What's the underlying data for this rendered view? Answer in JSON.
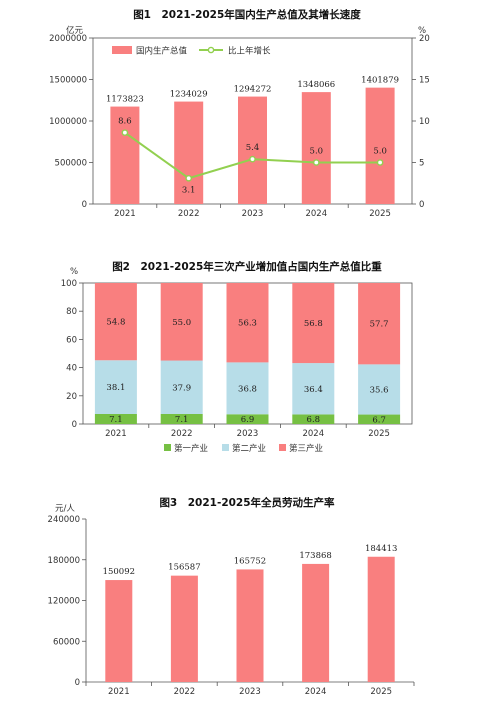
{
  "colors": {
    "bar": "#f97f7f",
    "line": "#92d050",
    "primary": "#76c043",
    "secondary": "#b7dde8",
    "tertiary": "#f97f7f",
    "axis": "#555555"
  },
  "chart_data": [
    {
      "type": "bar",
      "title": "图1　2021-2025年国内生产总值及其增长速度",
      "categories": [
        "2021",
        "2022",
        "2023",
        "2024",
        "2025"
      ],
      "left_unit": "亿元",
      "right_unit": "%",
      "left_ticks": [
        "0",
        "500000",
        "1000000",
        "1500000",
        "2000000"
      ],
      "right_ticks": [
        "0",
        "5",
        "10",
        "15",
        "20"
      ],
      "ylim": [
        0,
        2000000
      ],
      "y2lim": [
        0,
        20
      ],
      "series": [
        {
          "name": "国内生产总值",
          "type": "bar",
          "values": [
            1173823,
            1234029,
            1294272,
            1348066,
            1401879
          ],
          "labels": [
            "1173823",
            "1234029",
            "1294272",
            "1348066",
            "1401879"
          ]
        },
        {
          "name": "比上年增长",
          "type": "line",
          "values": [
            8.6,
            3.1,
            5.4,
            5.0,
            5.0
          ],
          "labels": [
            "8.6",
            "3.1",
            "5.4",
            "5.0",
            "5.0"
          ]
        }
      ],
      "legend_position": "top-left"
    },
    {
      "type": "bar",
      "title": "图2　2021-2025年三次产业增加值占国内生产总值比重",
      "categories": [
        "2021",
        "2022",
        "2023",
        "2024",
        "2025"
      ],
      "unit": "%",
      "ticks": [
        "0",
        "20",
        "40",
        "60",
        "80",
        "100"
      ],
      "ylim": [
        0,
        100
      ],
      "stacked": true,
      "series": [
        {
          "name": "第一产业",
          "values": [
            7.1,
            7.1,
            6.9,
            6.8,
            6.7
          ],
          "labels": [
            "7.1",
            "7.1",
            "6.9",
            "6.8",
            "6.7"
          ]
        },
        {
          "name": "第二产业",
          "values": [
            38.1,
            37.9,
            36.8,
            36.4,
            35.6
          ],
          "labels": [
            "38.1",
            "37.9",
            "36.8",
            "36.4",
            "35.6"
          ]
        },
        {
          "name": "第三产业",
          "values": [
            54.8,
            55.0,
            56.3,
            56.8,
            57.7
          ],
          "labels": [
            "54.8",
            "55.0",
            "56.3",
            "56.8",
            "57.7"
          ]
        }
      ],
      "legend_position": "bottom"
    },
    {
      "type": "bar",
      "title": "图3　2021-2025年全员劳动生产率",
      "categories": [
        "2021",
        "2022",
        "2023",
        "2024",
        "2025"
      ],
      "unit": "元/人",
      "ticks": [
        "0",
        "60000",
        "120000",
        "180000",
        "240000"
      ],
      "ylim": [
        0,
        240000
      ],
      "values": [
        150092,
        156587,
        165752,
        173868,
        184413
      ],
      "labels": [
        "150092",
        "156587",
        "165752",
        "173868",
        "184413"
      ]
    }
  ]
}
